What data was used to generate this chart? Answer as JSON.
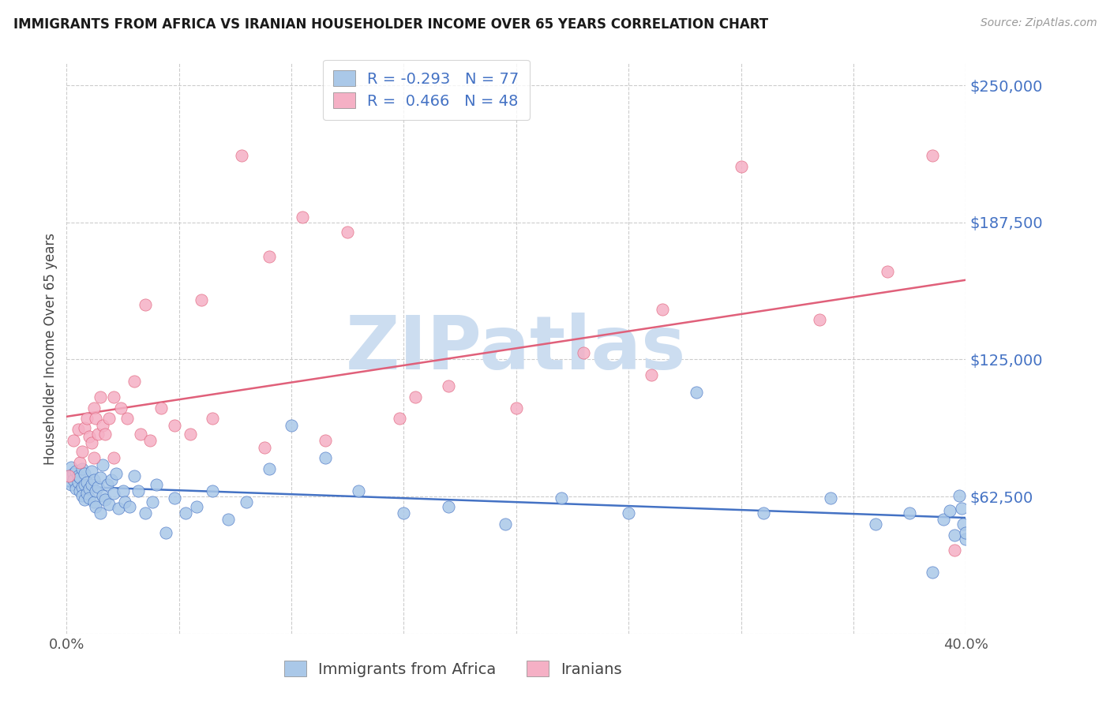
{
  "title": "IMMIGRANTS FROM AFRICA VS IRANIAN HOUSEHOLDER INCOME OVER 65 YEARS CORRELATION CHART",
  "source": "Source: ZipAtlas.com",
  "ylabel": "Householder Income Over 65 years",
  "xlim": [
    0.0,
    0.4
  ],
  "ylim": [
    0,
    260000
  ],
  "yticks": [
    0,
    62500,
    125000,
    187500,
    250000
  ],
  "ytick_labels": [
    "",
    "$62,500",
    "$125,000",
    "$187,500",
    "$250,000"
  ],
  "xtick_positions": [
    0.0,
    0.05,
    0.1,
    0.15,
    0.2,
    0.25,
    0.3,
    0.35,
    0.4
  ],
  "xtick_labels": [
    "0.0%",
    "",
    "",
    "",
    "",
    "",
    "",
    "",
    "40.0%"
  ],
  "legend_label1": "Immigrants from Africa",
  "legend_label2": "Iranians",
  "scatter_color_africa": "#aac8e8",
  "scatter_color_iran": "#f5b0c5",
  "line_color_africa": "#4472c4",
  "line_color_iran": "#e0607a",
  "watermark": "ZIPatlas",
  "watermark_color": "#ccddf0",
  "title_color": "#1a1a1a",
  "ytick_color": "#4472c4",
  "legend_text_color": "#4472c4",
  "grid_color": "#cccccc",
  "bg_color": "#ffffff",
  "africa_x": [
    0.001,
    0.002,
    0.002,
    0.003,
    0.003,
    0.004,
    0.004,
    0.005,
    0.005,
    0.006,
    0.006,
    0.007,
    0.007,
    0.007,
    0.008,
    0.008,
    0.008,
    0.009,
    0.009,
    0.01,
    0.01,
    0.011,
    0.011,
    0.012,
    0.012,
    0.013,
    0.013,
    0.014,
    0.015,
    0.015,
    0.016,
    0.016,
    0.017,
    0.018,
    0.019,
    0.02,
    0.021,
    0.022,
    0.023,
    0.025,
    0.026,
    0.028,
    0.03,
    0.032,
    0.035,
    0.038,
    0.04,
    0.044,
    0.048,
    0.053,
    0.058,
    0.065,
    0.072,
    0.08,
    0.09,
    0.1,
    0.115,
    0.13,
    0.15,
    0.17,
    0.195,
    0.22,
    0.25,
    0.28,
    0.31,
    0.34,
    0.36,
    0.375,
    0.385,
    0.39,
    0.393,
    0.395,
    0.397,
    0.398,
    0.399,
    0.4,
    0.4
  ],
  "africa_y": [
    72000,
    76000,
    68000,
    73000,
    70000,
    66000,
    74000,
    69000,
    72000,
    65000,
    71000,
    67000,
    63000,
    75000,
    68000,
    61000,
    73000,
    64000,
    69000,
    66000,
    62000,
    68000,
    74000,
    60000,
    70000,
    65000,
    58000,
    67000,
    55000,
    71000,
    63000,
    77000,
    61000,
    68000,
    59000,
    70000,
    64000,
    73000,
    57000,
    65000,
    60000,
    58000,
    72000,
    65000,
    55000,
    60000,
    68000,
    46000,
    62000,
    55000,
    58000,
    65000,
    52000,
    60000,
    75000,
    95000,
    80000,
    65000,
    55000,
    58000,
    50000,
    62000,
    55000,
    110000,
    55000,
    62000,
    50000,
    55000,
    28000,
    52000,
    56000,
    45000,
    63000,
    57000,
    50000,
    43000,
    46000
  ],
  "iran_x": [
    0.001,
    0.003,
    0.005,
    0.006,
    0.007,
    0.008,
    0.009,
    0.01,
    0.011,
    0.012,
    0.013,
    0.014,
    0.015,
    0.016,
    0.017,
    0.019,
    0.021,
    0.024,
    0.027,
    0.03,
    0.033,
    0.037,
    0.042,
    0.048,
    0.055,
    0.065,
    0.078,
    0.09,
    0.105,
    0.125,
    0.148,
    0.17,
    0.2,
    0.23,
    0.265,
    0.3,
    0.335,
    0.365,
    0.385,
    0.395,
    0.021,
    0.012,
    0.035,
    0.06,
    0.088,
    0.115,
    0.155,
    0.26
  ],
  "iran_y": [
    72000,
    88000,
    93000,
    78000,
    83000,
    94000,
    98000,
    90000,
    87000,
    103000,
    98000,
    91000,
    108000,
    95000,
    91000,
    98000,
    108000,
    103000,
    98000,
    115000,
    91000,
    88000,
    103000,
    95000,
    91000,
    98000,
    218000,
    172000,
    190000,
    183000,
    98000,
    113000,
    103000,
    128000,
    148000,
    213000,
    143000,
    165000,
    218000,
    38000,
    80000,
    80000,
    150000,
    152000,
    85000,
    88000,
    108000,
    118000
  ]
}
